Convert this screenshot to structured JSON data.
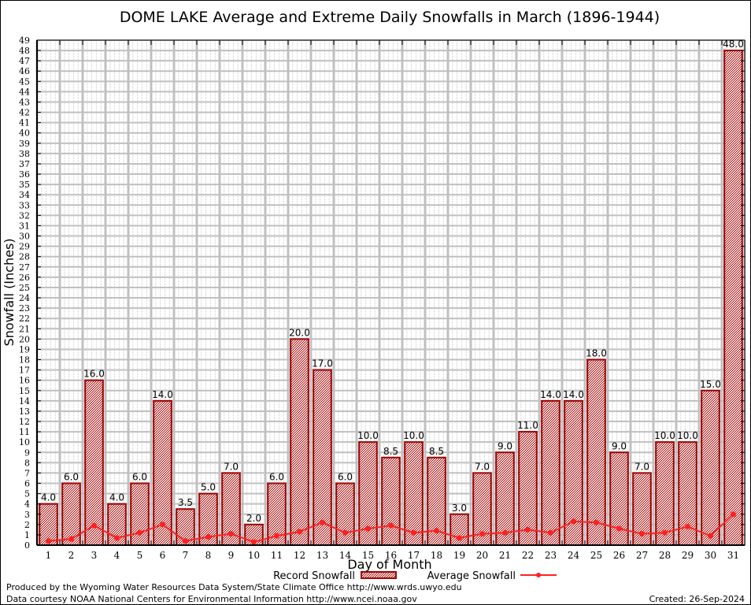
{
  "chart_data": {
    "type": "bar",
    "title": "DOME LAKE Average and Extreme Daily Snowfalls in March (1896-1944)",
    "xlabel": "Day of Month",
    "ylabel": "Snowfall (Inches)",
    "ylim": [
      0,
      49
    ],
    "yticks": [
      0,
      1,
      2,
      3,
      4,
      5,
      6,
      7,
      8,
      9,
      10,
      11,
      12,
      13,
      14,
      15,
      16,
      17,
      18,
      19,
      20,
      21,
      22,
      23,
      24,
      25,
      26,
      27,
      28,
      29,
      30,
      31,
      32,
      33,
      34,
      35,
      36,
      37,
      38,
      39,
      40,
      41,
      42,
      43,
      44,
      45,
      46,
      47,
      48,
      49
    ],
    "grid": true,
    "categories": [
      "1",
      "2",
      "3",
      "4",
      "5",
      "6",
      "7",
      "8",
      "9",
      "10",
      "11",
      "12",
      "13",
      "14",
      "15",
      "16",
      "17",
      "18",
      "19",
      "20",
      "21",
      "22",
      "23",
      "24",
      "25",
      "26",
      "27",
      "28",
      "29",
      "30",
      "31"
    ],
    "series": [
      {
        "name": "Record Snowfall",
        "type": "bar",
        "color": "#a00000",
        "values": [
          4.0,
          6.0,
          16.0,
          4.0,
          6.0,
          14.0,
          3.5,
          5.0,
          7.0,
          2.0,
          6.0,
          20.0,
          17.0,
          6.0,
          10.0,
          8.5,
          10.0,
          8.5,
          3.0,
          7.0,
          9.0,
          11.0,
          14.0,
          14.0,
          18.0,
          9.0,
          7.0,
          10.0,
          10.0,
          15.0,
          48.0
        ],
        "labels": [
          "4.0",
          "6.0",
          "16.0",
          "4.0",
          "6.0",
          "14.0",
          "3.5",
          "5.0",
          "7.0",
          "2.0",
          "6.0",
          "20.0",
          "17.0",
          "6.0",
          "10.0",
          "8.5",
          "10.0",
          "8.5",
          "3.0",
          "7.0",
          "9.0",
          "11.0",
          "14.0",
          "14.0",
          "18.0",
          "9.0",
          "7.0",
          "10.0",
          "10.0",
          "15.0",
          "48.0"
        ]
      },
      {
        "name": "Average Snowfall",
        "type": "line",
        "color": "#ff2020",
        "values": [
          0.4,
          0.6,
          1.9,
          0.7,
          1.2,
          2.0,
          0.4,
          0.8,
          1.1,
          0.3,
          0.9,
          1.3,
          2.2,
          1.2,
          1.6,
          1.9,
          1.2,
          1.4,
          0.7,
          1.1,
          1.2,
          1.5,
          1.2,
          2.3,
          2.2,
          1.6,
          1.1,
          1.2,
          1.8,
          0.9,
          3.0
        ]
      }
    ],
    "legend": "bottom-center"
  },
  "footer": {
    "line1": "Produced by the Wyoming Water Resources Data System/State Climate Office http://www.wrds.uwyo.edu",
    "line2": "Data courtesy NOAA National Centers for Environmental Information http://www.ncei.noaa.gov",
    "created": "Created: 26-Sep-2024"
  }
}
